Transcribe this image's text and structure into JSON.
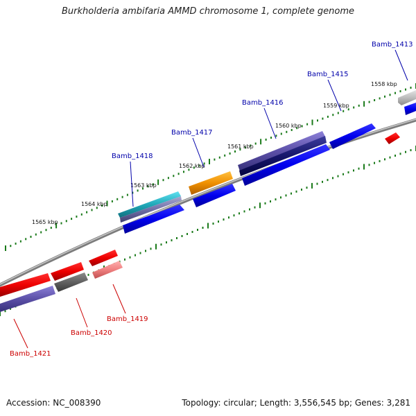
{
  "title": "Burkholderia ambifaria AMMD chromosome 1, complete genome",
  "footer": {
    "accession": "Accession: NC_008390",
    "stats": "Topology: circular; Length: 3,556,545 bp; Genes: 3,281"
  },
  "colors": {
    "forward_label": "#0000aa",
    "reverse_label": "#cc0000",
    "tick": "#1a7a1a",
    "backbone": "#888888"
  },
  "kbp_labels": [
    "1558 kbp",
    "1559 kbp",
    "1560 kbp",
    "1561 kbp",
    "1562 kbp",
    "1563 kbp",
    "1564 kbp",
    "1565 kbp"
  ],
  "forward_genes": [
    {
      "name": "Bamb_1413",
      "color": "#c0c0c0"
    },
    {
      "name": "Bamb_1415",
      "color": "#0000ee"
    },
    {
      "name": "Bamb_1416",
      "color": "#5c50a8"
    },
    {
      "name": "Bamb_1417",
      "color": "#f09000"
    },
    {
      "name": "Bamb_1418",
      "color": "#20a8b8"
    }
  ],
  "reverse_genes": [
    {
      "name": "Bamb_1419",
      "color": "#f08080"
    },
    {
      "name": "Bamb_1420",
      "color": "#606060"
    },
    {
      "name": "Bamb_1421",
      "color": "#e00000"
    }
  ]
}
